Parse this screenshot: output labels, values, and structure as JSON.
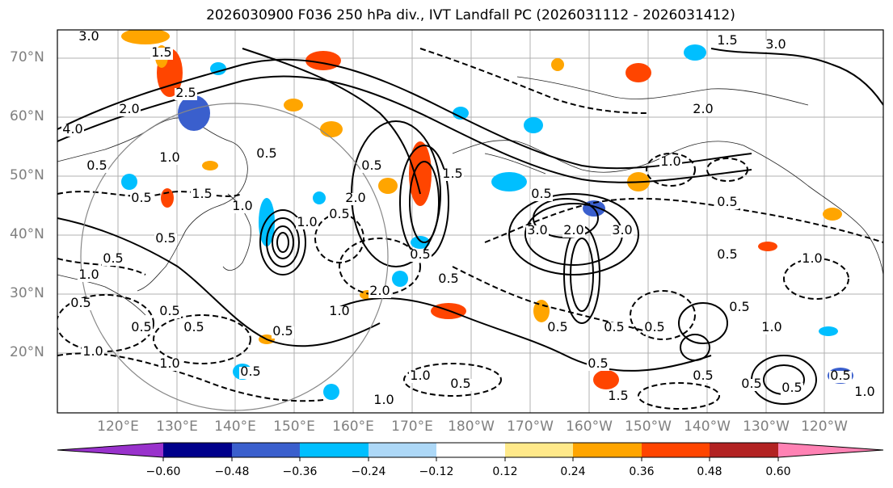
{
  "title": "2026030900 F036 250 hPa div., IVT Landfall PC (2026031112 - 2026031412)",
  "lat_labels": [
    "70°N",
    "60°N",
    "50°N",
    "40°N",
    "30°N",
    "20°N"
  ],
  "lon_labels": [
    "120°E",
    "130°E",
    "140°E",
    "150°E",
    "160°E",
    "170°E",
    "180°W",
    "170°W",
    "160°W",
    "150°W",
    "140°W",
    "130°W",
    "120°W"
  ],
  "contour_labels": [
    "3.0",
    "1.5",
    "2.5",
    "2.0",
    "4.0",
    "0.5",
    "0.5",
    "0.5",
    "1.0",
    "1.5",
    "1.0",
    "0.5",
    "0.5",
    "3.0",
    "2.0",
    "1.5",
    "2.0",
    "1.0",
    "0.5",
    "0.5",
    "0.5",
    "2.0",
    "1.0",
    "0.5",
    "0.5",
    "1.0",
    "1.0",
    "1.0",
    "0.5",
    "0.5",
    "0.5",
    "0.5",
    "1.0",
    "0.5",
    "1.5",
    "3.0",
    "2.0",
    "3.0",
    "0.5",
    "1.0",
    "0.5",
    "0.5",
    "0.5",
    "0.5",
    "0.5",
    "1.0",
    "0.5",
    "0.5",
    "1.0",
    "0.5",
    "0.5",
    "0.5",
    "1.5",
    "1.0",
    "0.5",
    "0.5",
    "1.0"
  ],
  "colorbar": {
    "ticks": [
      "−0.60",
      "−0.48",
      "−0.36",
      "−0.24",
      "−0.12",
      "0.12",
      "0.24",
      "0.36",
      "0.48",
      "0.60"
    ],
    "colors": [
      "#9932cc",
      "#00008b",
      "#3a5fcd",
      "#00bfff",
      "#add8f7",
      "#ffffff",
      "#ffe98a",
      "#ffa500",
      "#ff4500",
      "#b22222",
      "#ff82b4"
    ]
  },
  "fill_colors": {
    "neg_light": "#add8f7",
    "neg_mid": "#00bfff",
    "neg_dark": "#3a5fcd",
    "pos_light": "#ffe98a",
    "pos_mid": "#ffa500",
    "pos_dark": "#ff4500"
  }
}
